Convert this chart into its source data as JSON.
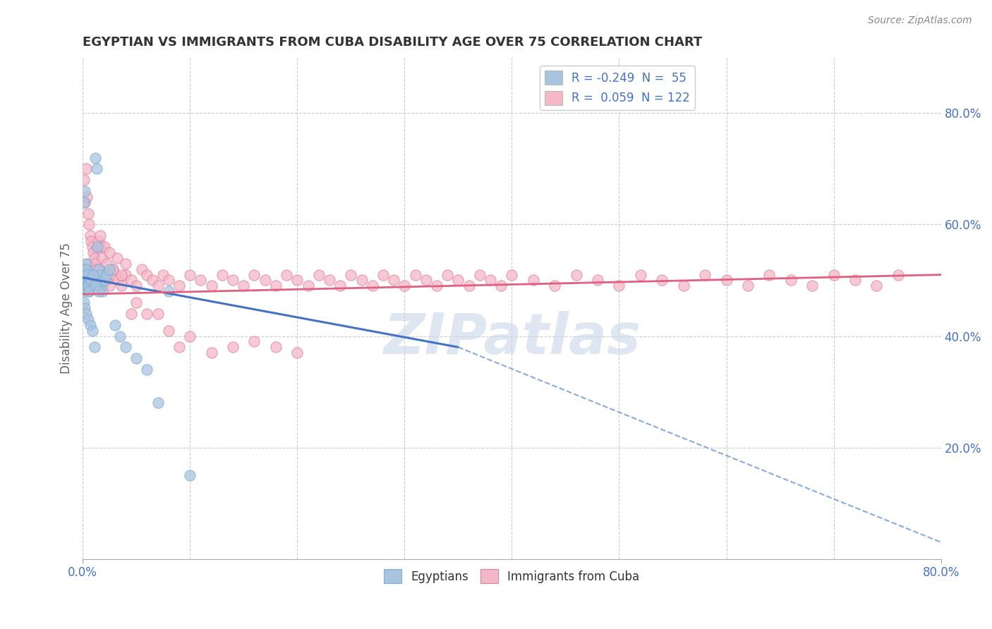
{
  "title": "EGYPTIAN VS IMMIGRANTS FROM CUBA DISABILITY AGE OVER 75 CORRELATION CHART",
  "source": "Source: ZipAtlas.com",
  "ylabel": "Disability Age Over 75",
  "right_yticks": [
    "80.0%",
    "60.0%",
    "40.0%",
    "20.0%"
  ],
  "right_ytick_positions": [
    0.8,
    0.6,
    0.4,
    0.2
  ],
  "legend_entries": [
    {
      "label": "R = -0.249  N =  55",
      "color": "#a8c4e0"
    },
    {
      "label": "R =  0.059  N = 122",
      "color": "#f4b8c8"
    }
  ],
  "legend_box_colors": [
    "#a8c4e0",
    "#f4b8c8"
  ],
  "scatter_egyptians": {
    "color": "#aac4e0",
    "edgecolor": "#7aaed4",
    "x": [
      0.0,
      0.001,
      0.001,
      0.002,
      0.002,
      0.003,
      0.003,
      0.004,
      0.004,
      0.005,
      0.005,
      0.006,
      0.006,
      0.007,
      0.007,
      0.008,
      0.009,
      0.01,
      0.01,
      0.011,
      0.012,
      0.013,
      0.014,
      0.015,
      0.016,
      0.017,
      0.018,
      0.02,
      0.022,
      0.025,
      0.001,
      0.002,
      0.003,
      0.004,
      0.005,
      0.006,
      0.008,
      0.01,
      0.012,
      0.015,
      0.001,
      0.002,
      0.003,
      0.005,
      0.007,
      0.009,
      0.011,
      0.03,
      0.035,
      0.04,
      0.05,
      0.06,
      0.07,
      0.08,
      0.1
    ],
    "y": [
      0.5,
      0.51,
      0.49,
      0.52,
      0.48,
      0.53,
      0.485,
      0.49,
      0.51,
      0.5,
      0.49,
      0.51,
      0.48,
      0.5,
      0.49,
      0.5,
      0.51,
      0.49,
      0.5,
      0.51,
      0.72,
      0.7,
      0.56,
      0.52,
      0.51,
      0.49,
      0.48,
      0.5,
      0.51,
      0.52,
      0.64,
      0.66,
      0.52,
      0.51,
      0.49,
      0.48,
      0.5,
      0.51,
      0.49,
      0.48,
      0.46,
      0.45,
      0.44,
      0.43,
      0.42,
      0.41,
      0.38,
      0.42,
      0.4,
      0.38,
      0.36,
      0.34,
      0.28,
      0.48,
      0.15
    ]
  },
  "scatter_cuba": {
    "color": "#f4b8c8",
    "edgecolor": "#e080a0",
    "x": [
      0.001,
      0.002,
      0.003,
      0.004,
      0.005,
      0.006,
      0.007,
      0.008,
      0.009,
      0.01,
      0.011,
      0.012,
      0.013,
      0.014,
      0.015,
      0.016,
      0.017,
      0.018,
      0.019,
      0.02,
      0.022,
      0.025,
      0.028,
      0.03,
      0.033,
      0.036,
      0.04,
      0.045,
      0.05,
      0.055,
      0.06,
      0.065,
      0.07,
      0.075,
      0.08,
      0.09,
      0.1,
      0.11,
      0.12,
      0.13,
      0.14,
      0.15,
      0.16,
      0.17,
      0.18,
      0.19,
      0.2,
      0.21,
      0.22,
      0.23,
      0.24,
      0.25,
      0.26,
      0.27,
      0.28,
      0.29,
      0.3,
      0.31,
      0.32,
      0.33,
      0.34,
      0.35,
      0.36,
      0.37,
      0.38,
      0.39,
      0.4,
      0.42,
      0.44,
      0.46,
      0.48,
      0.5,
      0.52,
      0.54,
      0.56,
      0.58,
      0.6,
      0.62,
      0.64,
      0.66,
      0.68,
      0.7,
      0.72,
      0.74,
      0.76,
      0.001,
      0.002,
      0.003,
      0.004,
      0.005,
      0.006,
      0.007,
      0.008,
      0.009,
      0.01,
      0.011,
      0.012,
      0.013,
      0.014,
      0.015,
      0.016,
      0.017,
      0.018,
      0.02,
      0.022,
      0.025,
      0.028,
      0.032,
      0.036,
      0.04,
      0.045,
      0.05,
      0.06,
      0.07,
      0.08,
      0.09,
      0.1,
      0.12,
      0.14,
      0.16,
      0.18,
      0.2
    ],
    "y": [
      0.51,
      0.49,
      0.52,
      0.5,
      0.53,
      0.49,
      0.51,
      0.5,
      0.49,
      0.52,
      0.5,
      0.49,
      0.51,
      0.5,
      0.49,
      0.52,
      0.51,
      0.5,
      0.49,
      0.51,
      0.5,
      0.49,
      0.52,
      0.51,
      0.5,
      0.49,
      0.51,
      0.5,
      0.49,
      0.52,
      0.51,
      0.5,
      0.49,
      0.51,
      0.5,
      0.49,
      0.51,
      0.5,
      0.49,
      0.51,
      0.5,
      0.49,
      0.51,
      0.5,
      0.49,
      0.51,
      0.5,
      0.49,
      0.51,
      0.5,
      0.49,
      0.51,
      0.5,
      0.49,
      0.51,
      0.5,
      0.49,
      0.51,
      0.5,
      0.49,
      0.51,
      0.5,
      0.49,
      0.51,
      0.5,
      0.49,
      0.51,
      0.5,
      0.49,
      0.51,
      0.5,
      0.49,
      0.51,
      0.5,
      0.49,
      0.51,
      0.5,
      0.49,
      0.51,
      0.5,
      0.49,
      0.51,
      0.5,
      0.49,
      0.51,
      0.68,
      0.64,
      0.7,
      0.65,
      0.62,
      0.6,
      0.58,
      0.57,
      0.56,
      0.55,
      0.54,
      0.53,
      0.52,
      0.56,
      0.57,
      0.58,
      0.56,
      0.54,
      0.56,
      0.53,
      0.55,
      0.52,
      0.54,
      0.51,
      0.53,
      0.44,
      0.46,
      0.44,
      0.44,
      0.41,
      0.38,
      0.4,
      0.37,
      0.38,
      0.39,
      0.38,
      0.37
    ]
  },
  "trend_egyptian_solid": {
    "x": [
      0.0,
      0.35
    ],
    "y": [
      0.505,
      0.38
    ],
    "color": "#4472c4",
    "linewidth": 2.2
  },
  "trend_egyptian_dash": {
    "x": [
      0.35,
      0.8
    ],
    "y": [
      0.38,
      0.03
    ],
    "color": "#88aadd",
    "linewidth": 1.5,
    "linestyle": "--"
  },
  "trend_cuba_solid": {
    "x": [
      0.0,
      0.8
    ],
    "y": [
      0.475,
      0.51
    ],
    "color": "#e06080",
    "linewidth": 2.0
  },
  "xlim": [
    0.0,
    0.8
  ],
  "ylim": [
    0.0,
    0.9
  ],
  "xticks": [
    0.0,
    0.8
  ],
  "xticklabels": [
    "0.0%",
    "80.0%"
  ],
  "watermark_text": "ZIPatlas",
  "watermark_color": "#c8d8e8",
  "background_color": "#ffffff",
  "grid_color": "#cccccc",
  "title_fontsize": 13,
  "title_color": "#333333",
  "axis_label_color": "#4472c4",
  "ylabel_color": "#666666",
  "source_text": "Source: ZipAtlas.com",
  "bottom_legend_labels": [
    "Egyptians",
    "Immigrants from Cuba"
  ]
}
